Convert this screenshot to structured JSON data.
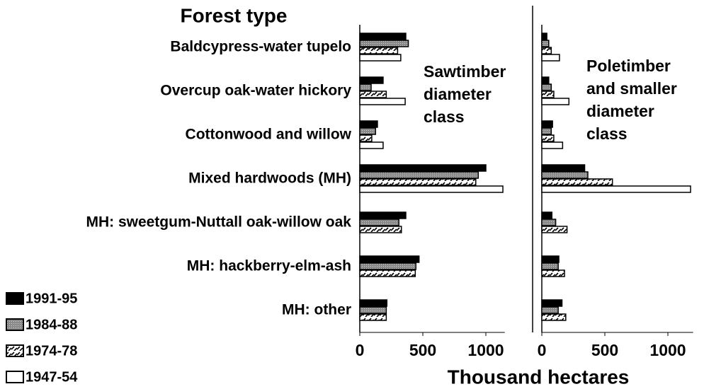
{
  "chart_data": [
    {
      "type": "bar",
      "orientation": "horizontal",
      "title": [
        "Sawtimber",
        "diameter",
        "class"
      ],
      "ylabel": "Forest type",
      "xlabel": "Thousand hectares",
      "categories": [
        "Baldcypress-water tupelo",
        "Overcup oak-water hickory",
        "Cottonwood and willow",
        "Mixed hardwoods (MH)",
        "MH: sweetgum-Nuttall oak-willow oak",
        "MH: hackberry-elm-ash",
        "MH: other"
      ],
      "series": [
        {
          "name": "1991-95",
          "color": "#000000",
          "pattern": "solid",
          "values": [
            365,
            185,
            140,
            1000,
            365,
            470,
            215
          ]
        },
        {
          "name": "1984-88",
          "color": "#9a9a9a",
          "pattern": "dots",
          "values": [
            385,
            90,
            125,
            940,
            310,
            445,
            210
          ]
        },
        {
          "name": "1974-78",
          "color": "#ffffff",
          "pattern": "hatch",
          "values": [
            300,
            210,
            95,
            920,
            330,
            440,
            210
          ]
        },
        {
          "name": "1947-54",
          "color": "#ffffff",
          "pattern": "solid",
          "values": [
            325,
            360,
            185,
            1135,
            null,
            null,
            null
          ]
        }
      ],
      "xlim": [
        0,
        1150
      ],
      "xticks": [
        0,
        500,
        1000
      ]
    },
    {
      "type": "bar",
      "orientation": "horizontal",
      "title": [
        "Poletimber",
        "and smaller",
        "diameter",
        "class"
      ],
      "series": [
        {
          "color": "#000000",
          "pattern": "solid",
          "values": [
            40,
            55,
            85,
            340,
            80,
            135,
            160
          ]
        },
        {
          "color": "#9a9a9a",
          "pattern": "dots",
          "values": [
            55,
            75,
            75,
            365,
            110,
            130,
            130
          ]
        },
        {
          "color": "#ffffff",
          "pattern": "hatch",
          "values": [
            75,
            95,
            95,
            560,
            200,
            180,
            190
          ]
        },
        {
          "color": "#ffffff",
          "pattern": "solid",
          "values": [
            140,
            215,
            165,
            1180,
            null,
            null,
            null
          ]
        }
      ],
      "xlim": [
        0,
        1200
      ],
      "xticks": [
        0,
        500,
        1000
      ]
    }
  ]
}
